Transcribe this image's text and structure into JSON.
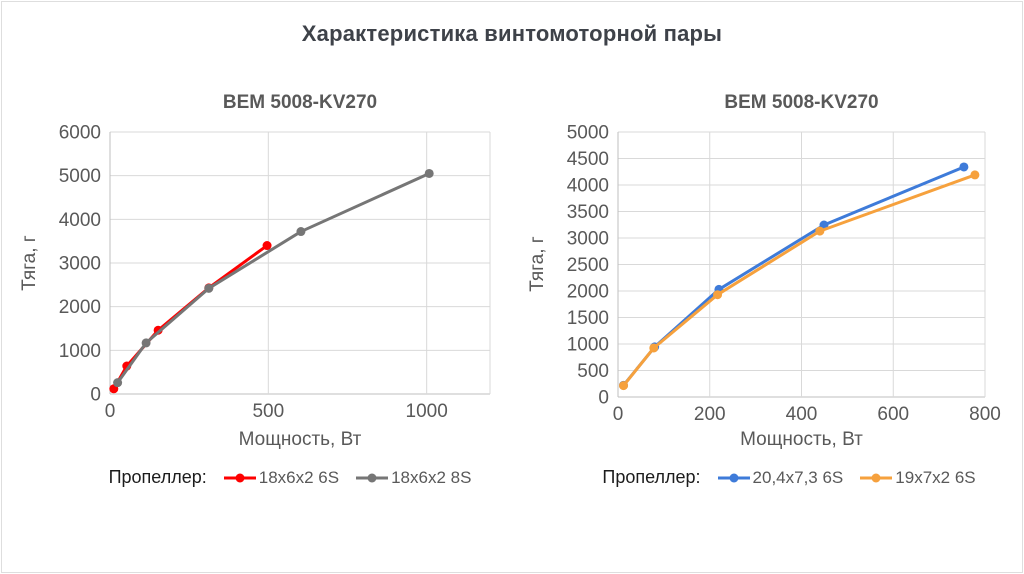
{
  "page": {
    "title": "Характеристика винтомоторной пары"
  },
  "colors": {
    "grid": "#D9D9D9",
    "axis": "#BFBFBF",
    "tick_label": "#595959",
    "chart_title": "#595959",
    "main_title": "#3E4249"
  },
  "chart_data": [
    {
      "type": "line",
      "title": "BEM 5008-KV270",
      "xlabel": "Мощность, Вт",
      "ylabel": "Тяга, г",
      "legend_label": "Пропеллер:",
      "legend_position": "bottom",
      "grid": true,
      "xlim": [
        0,
        1200
      ],
      "ylim": [
        0,
        6000
      ],
      "x_ticks": [
        0,
        500,
        1000
      ],
      "y_ticks": [
        0,
        1000,
        2000,
        3000,
        4000,
        5000,
        6000
      ],
      "series": [
        {
          "name": "18x6x2 6S",
          "color": "#FE0000",
          "points": [
            [
              12,
              120
            ],
            [
              53,
              640
            ],
            [
              152,
              1460
            ],
            [
              312,
              2430
            ],
            [
              496,
              3400
            ]
          ]
        },
        {
          "name": "18x6x2 8S",
          "color": "#767676",
          "points": [
            [
              24,
              260
            ],
            [
              114,
              1170
            ],
            [
              312,
              2420
            ],
            [
              603,
              3720
            ],
            [
              1008,
              5050
            ]
          ]
        }
      ]
    },
    {
      "type": "line",
      "title": "BEM 5008-KV270",
      "xlabel": "Мощность, Вт",
      "ylabel": "Тяга, г",
      "legend_label": "Пропеллер:",
      "legend_position": "bottom",
      "grid": true,
      "xlim": [
        0,
        800
      ],
      "ylim": [
        0,
        5000
      ],
      "x_ticks": [
        0,
        200,
        400,
        600,
        800
      ],
      "y_ticks": [
        0,
        500,
        1000,
        1500,
        2000,
        2500,
        3000,
        3500,
        4000,
        4500,
        5000
      ],
      "series": [
        {
          "name": "20,4x7,3 6S",
          "color": "#3E7BD9",
          "points": [
            [
              12,
              220
            ],
            [
              80,
              945
            ],
            [
              220,
              2030
            ],
            [
              449,
              3245
            ],
            [
              754,
              4340
            ]
          ]
        },
        {
          "name": "19x7x2 6S",
          "color": "#F6A13D",
          "points": [
            [
              12,
              215
            ],
            [
              78,
              925
            ],
            [
              217,
              1930
            ],
            [
              440,
              3130
            ],
            [
              778,
              4190
            ]
          ]
        }
      ]
    }
  ]
}
